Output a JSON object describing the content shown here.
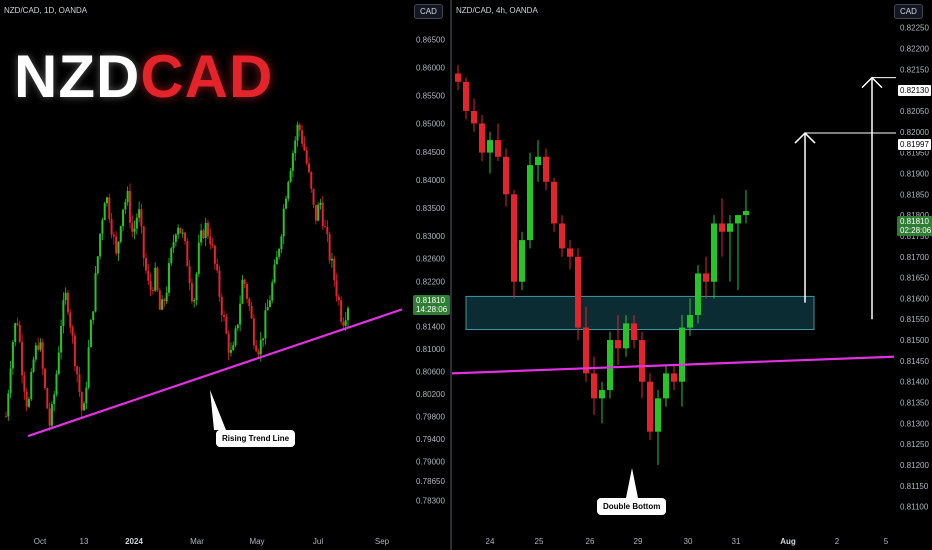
{
  "colors": {
    "up": "#26c526",
    "down": "#e3242b",
    "trend": "#e032e0",
    "zone": "#1f7f8f",
    "bg": "#000000"
  },
  "logo": {
    "part1": "NZD",
    "part2": "CAD"
  },
  "left_chart": {
    "symbol": "NZD/CAD, 1D, OANDA",
    "currency_badge": "CAD",
    "price_box": {
      "price": "0.81810",
      "countdown": "14:28:06"
    },
    "callout": "Rising Trend Line"
  },
  "right_chart": {
    "symbol": "NZD/CAD, 4h, OANDA",
    "currency_badge": "CAD",
    "price_box": {
      "price": "0.81810",
      "countdown": "02:28:06"
    },
    "callout": "Double Bottom",
    "targets": [
      "0.82130",
      "0.81997"
    ]
  },
  "chart_data": [
    {
      "type": "candlestick",
      "title": "NZD/CAD, 1D, OANDA",
      "y_ticks": [
        "0.86500",
        "0.86000",
        "0.85500",
        "0.85000",
        "0.84500",
        "0.84000",
        "0.83500",
        "0.83000",
        "0.82600",
        "0.82200",
        "0.81800",
        "0.81400",
        "0.81000",
        "0.80600",
        "0.80200",
        "0.79800",
        "0.79400",
        "0.79000",
        "0.78650",
        "0.78300"
      ],
      "x_ticks": [
        "Oct",
        "13",
        "2024",
        "Mar",
        "May",
        "Jul",
        "Sep"
      ],
      "ylim": [
        0.781,
        0.867
      ],
      "last_price": 0.8181,
      "trend_line": {
        "from_price": 0.7945,
        "to_price": 0.817,
        "label": "Rising Trend Line"
      },
      "path_closes": [
        0.798,
        0.81,
        0.816,
        0.806,
        0.799,
        0.808,
        0.812,
        0.803,
        0.796,
        0.804,
        0.815,
        0.82,
        0.812,
        0.805,
        0.797,
        0.81,
        0.82,
        0.83,
        0.838,
        0.833,
        0.826,
        0.835,
        0.837,
        0.83,
        0.835,
        0.826,
        0.82,
        0.823,
        0.816,
        0.82,
        0.827,
        0.833,
        0.83,
        0.825,
        0.818,
        0.828,
        0.832,
        0.83,
        0.824,
        0.818,
        0.812,
        0.808,
        0.815,
        0.823,
        0.818,
        0.812,
        0.81,
        0.815,
        0.82,
        0.825,
        0.832,
        0.84,
        0.845,
        0.85,
        0.846,
        0.84,
        0.833,
        0.836,
        0.83,
        0.825,
        0.82,
        0.815,
        0.8181
      ]
    },
    {
      "type": "candlestick",
      "title": "NZD/CAD, 4h, OANDA",
      "y_ticks": [
        "0.82250",
        "0.82200",
        "0.82150",
        "0.82100",
        "0.82050",
        "0.82000",
        "0.81950",
        "0.81900",
        "0.81850",
        "0.81800",
        "0.81750",
        "0.81700",
        "0.81650",
        "0.81600",
        "0.81550",
        "0.81500",
        "0.81450",
        "0.81400",
        "0.81350",
        "0.81300",
        "0.81250",
        "0.81200",
        "0.81150",
        "0.81100"
      ],
      "x_ticks": [
        "24",
        "25",
        "26",
        "29",
        "30",
        "31",
        "Aug",
        "2",
        "5"
      ],
      "ylim": [
        0.8108,
        0.8229
      ],
      "last_price": 0.8181,
      "demand_zone": [
        0.81525,
        0.81605
      ],
      "trend_line": {
        "from_price": 0.8142,
        "to_price": 0.8146
      },
      "targets": [
        0.81997,
        0.8213
      ],
      "candles": [
        [
          0.8214,
          0.8216,
          0.821,
          0.8212
        ],
        [
          0.8212,
          0.8213,
          0.8203,
          0.8205
        ],
        [
          0.8205,
          0.8208,
          0.82,
          0.8202
        ],
        [
          0.8202,
          0.8204,
          0.8193,
          0.8195
        ],
        [
          0.8195,
          0.82,
          0.819,
          0.8198
        ],
        [
          0.8198,
          0.8202,
          0.8193,
          0.8194
        ],
        [
          0.8194,
          0.8196,
          0.8182,
          0.8185
        ],
        [
          0.8185,
          0.8186,
          0.816,
          0.8164
        ],
        [
          0.8164,
          0.8176,
          0.8162,
          0.8174
        ],
        [
          0.8174,
          0.8195,
          0.8172,
          0.8192
        ],
        [
          0.8192,
          0.8198,
          0.8188,
          0.8194
        ],
        [
          0.8194,
          0.8196,
          0.8186,
          0.8188
        ],
        [
          0.8188,
          0.8189,
          0.8176,
          0.8178
        ],
        [
          0.8178,
          0.818,
          0.817,
          0.8172
        ],
        [
          0.8172,
          0.8174,
          0.8167,
          0.817
        ],
        [
          0.817,
          0.8172,
          0.815,
          0.8153
        ],
        [
          0.8153,
          0.8158,
          0.814,
          0.8142
        ],
        [
          0.8142,
          0.8146,
          0.8132,
          0.8136
        ],
        [
          0.8136,
          0.814,
          0.813,
          0.8138
        ],
        [
          0.8138,
          0.8152,
          0.8136,
          0.815
        ],
        [
          0.815,
          0.8156,
          0.8144,
          0.8148
        ],
        [
          0.8148,
          0.8156,
          0.8146,
          0.8154
        ],
        [
          0.8154,
          0.8156,
          0.8148,
          0.815
        ],
        [
          0.815,
          0.8152,
          0.8136,
          0.814
        ],
        [
          0.814,
          0.8142,
          0.8126,
          0.8128
        ],
        [
          0.8128,
          0.8138,
          0.812,
          0.8136
        ],
        [
          0.8136,
          0.8144,
          0.8134,
          0.8142
        ],
        [
          0.8142,
          0.8144,
          0.8138,
          0.814
        ],
        [
          0.814,
          0.8156,
          0.8134,
          0.8153
        ],
        [
          0.8153,
          0.816,
          0.8151,
          0.8156
        ],
        [
          0.8156,
          0.8168,
          0.8154,
          0.8166
        ],
        [
          0.8166,
          0.817,
          0.816,
          0.8164
        ],
        [
          0.8164,
          0.818,
          0.816,
          0.8178
        ],
        [
          0.8178,
          0.8184,
          0.817,
          0.8176
        ],
        [
          0.8176,
          0.818,
          0.8164,
          0.8178
        ],
        [
          0.8178,
          0.818,
          0.8162,
          0.818
        ],
        [
          0.818,
          0.8186,
          0.8178,
          0.8181
        ]
      ]
    }
  ]
}
